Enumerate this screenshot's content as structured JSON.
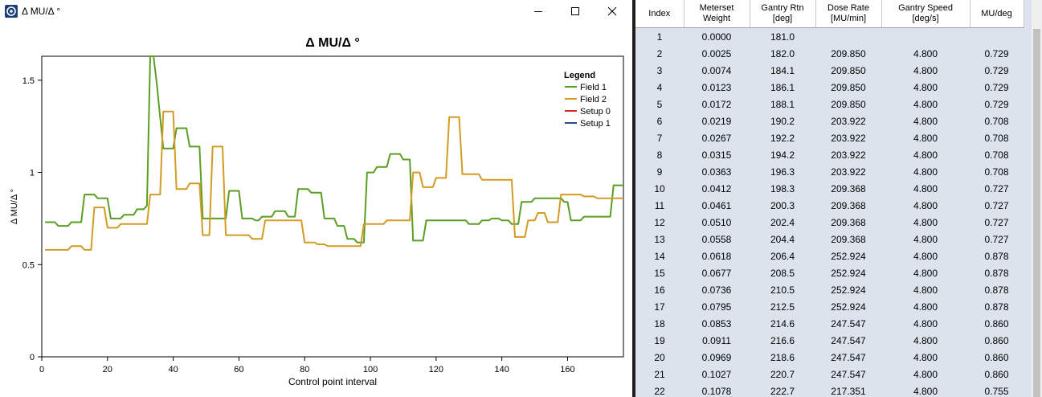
{
  "window": {
    "title": "Δ MU/Δ °"
  },
  "chart_data": {
    "type": "line",
    "title": "Δ MU/Δ °",
    "xlabel": "Control point interval",
    "ylabel": "Δ MU/Δ °",
    "xlim": [
      0,
      177
    ],
    "ylim": [
      0,
      1.63
    ],
    "xticks": [
      0,
      20,
      40,
      60,
      80,
      100,
      120,
      140,
      160
    ],
    "yticks": [
      0,
      0.5,
      1,
      1.5
    ],
    "legend": {
      "title": "Legend",
      "placement": "top-right"
    },
    "series": [
      {
        "name": "Field 1",
        "color": "#5a9e23",
        "points": [
          [
            1,
            0.73
          ],
          [
            4,
            0.73
          ],
          [
            5,
            0.71
          ],
          [
            8,
            0.71
          ],
          [
            9,
            0.73
          ],
          [
            12,
            0.73
          ],
          [
            13,
            0.88
          ],
          [
            16,
            0.88
          ],
          [
            17,
            0.86
          ],
          [
            20,
            0.86
          ],
          [
            21,
            0.75
          ],
          [
            24,
            0.75
          ],
          [
            25,
            0.77
          ],
          [
            28,
            0.77
          ],
          [
            29,
            0.8
          ],
          [
            31,
            0.8
          ],
          [
            32,
            0.82
          ],
          [
            33,
            1.63
          ],
          [
            34,
            1.63
          ],
          [
            35,
            1.48
          ],
          [
            36,
            1.3
          ],
          [
            37,
            1.13
          ],
          [
            40,
            1.13
          ],
          [
            41,
            1.24
          ],
          [
            44,
            1.24
          ],
          [
            45,
            1.14
          ],
          [
            48,
            1.14
          ],
          [
            49,
            0.75
          ],
          [
            56,
            0.75
          ],
          [
            57,
            0.9
          ],
          [
            60,
            0.9
          ],
          [
            61,
            0.75
          ],
          [
            64,
            0.75
          ],
          [
            65,
            0.74
          ],
          [
            66,
            0.74
          ],
          [
            67,
            0.76
          ],
          [
            70,
            0.76
          ],
          [
            71,
            0.79
          ],
          [
            74,
            0.79
          ],
          [
            75,
            0.76
          ],
          [
            77,
            0.76
          ],
          [
            78,
            0.91
          ],
          [
            81,
            0.91
          ],
          [
            82,
            0.89
          ],
          [
            85,
            0.89
          ],
          [
            86,
            0.75
          ],
          [
            89,
            0.75
          ],
          [
            90,
            0.71
          ],
          [
            92,
            0.71
          ],
          [
            93,
            0.64
          ],
          [
            95,
            0.64
          ],
          [
            96,
            0.62
          ],
          [
            98,
            0.62
          ],
          [
            99,
            1
          ],
          [
            101,
            1
          ],
          [
            102,
            1.03
          ],
          [
            105,
            1.03
          ],
          [
            106,
            1.1
          ],
          [
            109,
            1.1
          ],
          [
            110,
            1.07
          ],
          [
            112,
            1.07
          ],
          [
            113,
            0.63
          ],
          [
            116,
            0.63
          ],
          [
            117,
            0.74
          ],
          [
            129,
            0.74
          ],
          [
            130,
            0.72
          ],
          [
            133,
            0.72
          ],
          [
            134,
            0.74
          ],
          [
            136,
            0.74
          ],
          [
            137,
            0.75
          ],
          [
            139,
            0.75
          ],
          [
            140,
            0.74
          ],
          [
            142,
            0.74
          ],
          [
            143,
            0.72
          ],
          [
            145,
            0.72
          ],
          [
            146,
            0.84
          ],
          [
            149,
            0.84
          ],
          [
            150,
            0.86
          ],
          [
            158,
            0.86
          ],
          [
            159,
            0.84
          ],
          [
            160,
            0.84
          ],
          [
            161,
            0.74
          ],
          [
            164,
            0.74
          ],
          [
            165,
            0.76
          ],
          [
            173,
            0.76
          ],
          [
            174,
            0.93
          ],
          [
            177,
            0.93
          ]
        ]
      },
      {
        "name": "Field 2",
        "color": "#d39b23",
        "points": [
          [
            1,
            0.58
          ],
          [
            8,
            0.58
          ],
          [
            9,
            0.6
          ],
          [
            12,
            0.6
          ],
          [
            13,
            0.58
          ],
          [
            15,
            0.58
          ],
          [
            16,
            0.81
          ],
          [
            19,
            0.81
          ],
          [
            20,
            0.7
          ],
          [
            23,
            0.7
          ],
          [
            24,
            0.72
          ],
          [
            32,
            0.72
          ],
          [
            33,
            0.88
          ],
          [
            36,
            0.88
          ],
          [
            37,
            1.33
          ],
          [
            40,
            1.33
          ],
          [
            41,
            0.91
          ],
          [
            44,
            0.91
          ],
          [
            45,
            0.94
          ],
          [
            48,
            0.94
          ],
          [
            49,
            0.66
          ],
          [
            51,
            0.66
          ],
          [
            52,
            1.14
          ],
          [
            55,
            1.14
          ],
          [
            56,
            0.66
          ],
          [
            63,
            0.66
          ],
          [
            64,
            0.64
          ],
          [
            67,
            0.64
          ],
          [
            68,
            0.74
          ],
          [
            79,
            0.74
          ],
          [
            80,
            0.62
          ],
          [
            83,
            0.62
          ],
          [
            84,
            0.61
          ],
          [
            86,
            0.61
          ],
          [
            87,
            0.6
          ],
          [
            95,
            0.6
          ],
          [
            96,
            0.6
          ],
          [
            97,
            0.6
          ],
          [
            98,
            0.72
          ],
          [
            104,
            0.72
          ],
          [
            105,
            0.74
          ],
          [
            112,
            0.74
          ],
          [
            113,
            1
          ],
          [
            115,
            1
          ],
          [
            116,
            0.92
          ],
          [
            119,
            0.92
          ],
          [
            120,
            0.97
          ],
          [
            123,
            0.97
          ],
          [
            124,
            1.3
          ],
          [
            127,
            1.3
          ],
          [
            128,
            0.99
          ],
          [
            133,
            0.99
          ],
          [
            134,
            0.96
          ],
          [
            143,
            0.96
          ],
          [
            144,
            0.65
          ],
          [
            147,
            0.65
          ],
          [
            148,
            0.74
          ],
          [
            150,
            0.74
          ],
          [
            151,
            0.78
          ],
          [
            153,
            0.78
          ],
          [
            154,
            0.73
          ],
          [
            157,
            0.73
          ],
          [
            158,
            0.88
          ],
          [
            164,
            0.88
          ],
          [
            165,
            0.87
          ],
          [
            168,
            0.87
          ],
          [
            169,
            0.86
          ],
          [
            177,
            0.86
          ]
        ]
      },
      {
        "name": "Setup 0",
        "color": "#d62728",
        "points": []
      },
      {
        "name": "Setup 1",
        "color": "#2a4a8c",
        "points": []
      }
    ]
  },
  "table": {
    "columns": [
      [
        "Index"
      ],
      [
        "Meterset",
        "Weight"
      ],
      [
        "Gantry Rtn",
        "[deg]"
      ],
      [
        "Dose Rate",
        "[MU/min]"
      ],
      [
        "Gantry Speed",
        "[deg/s]"
      ],
      [
        "MU/deg"
      ]
    ],
    "rows": [
      [
        "1",
        "0.0000",
        "181.0",
        "",
        "",
        ""
      ],
      [
        "2",
        "0.0025",
        "182.0",
        "209.850",
        "4.800",
        "0.729"
      ],
      [
        "3",
        "0.0074",
        "184.1",
        "209.850",
        "4.800",
        "0.729"
      ],
      [
        "4",
        "0.0123",
        "186.1",
        "209.850",
        "4.800",
        "0.729"
      ],
      [
        "5",
        "0.0172",
        "188.1",
        "209.850",
        "4.800",
        "0.729"
      ],
      [
        "6",
        "0.0219",
        "190.2",
        "203.922",
        "4.800",
        "0.708"
      ],
      [
        "7",
        "0.0267",
        "192.2",
        "203.922",
        "4.800",
        "0.708"
      ],
      [
        "8",
        "0.0315",
        "194.2",
        "203.922",
        "4.800",
        "0.708"
      ],
      [
        "9",
        "0.0363",
        "196.3",
        "203.922",
        "4.800",
        "0.708"
      ],
      [
        "10",
        "0.0412",
        "198.3",
        "209.368",
        "4.800",
        "0.727"
      ],
      [
        "11",
        "0.0461",
        "200.3",
        "209.368",
        "4.800",
        "0.727"
      ],
      [
        "12",
        "0.0510",
        "202.4",
        "209.368",
        "4.800",
        "0.727"
      ],
      [
        "13",
        "0.0558",
        "204.4",
        "209.368",
        "4.800",
        "0.727"
      ],
      [
        "14",
        "0.0618",
        "206.4",
        "252.924",
        "4.800",
        "0.878"
      ],
      [
        "15",
        "0.0677",
        "208.5",
        "252.924",
        "4.800",
        "0.878"
      ],
      [
        "16",
        "0.0736",
        "210.5",
        "252.924",
        "4.800",
        "0.878"
      ],
      [
        "17",
        "0.0795",
        "212.5",
        "252.924",
        "4.800",
        "0.878"
      ],
      [
        "18",
        "0.0853",
        "214.6",
        "247.547",
        "4.800",
        "0.860"
      ],
      [
        "19",
        "0.0911",
        "216.6",
        "247.547",
        "4.800",
        "0.860"
      ],
      [
        "20",
        "0.0969",
        "218.6",
        "247.547",
        "4.800",
        "0.860"
      ],
      [
        "21",
        "0.1027",
        "220.7",
        "247.547",
        "4.800",
        "0.860"
      ],
      [
        "22",
        "0.1078",
        "222.7",
        "217.351",
        "4.800",
        "0.755"
      ]
    ]
  }
}
